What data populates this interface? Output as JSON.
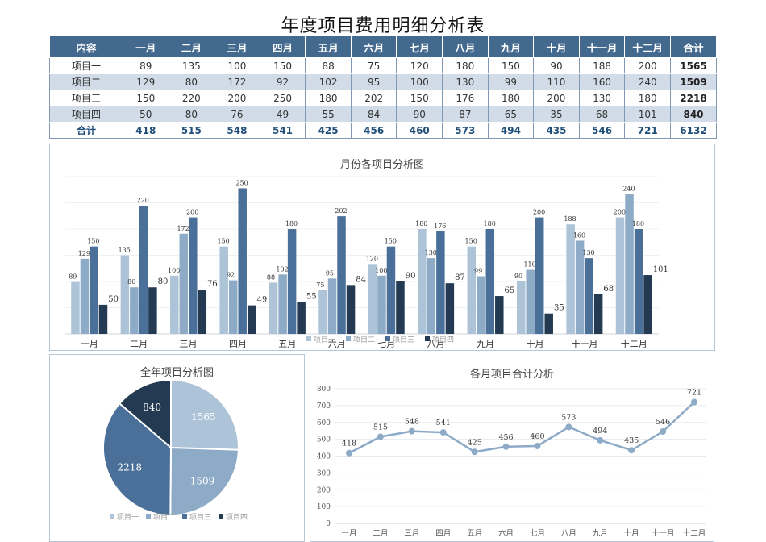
{
  "title": "年度项目费用明细分析表",
  "table": {
    "headers": [
      "内容",
      "一月",
      "二月",
      "三月",
      "四月",
      "五月",
      "六月",
      "七月",
      "八月",
      "九月",
      "十月",
      "十一月",
      "十二月",
      "合计"
    ],
    "rows": [
      {
        "name": "项目一",
        "values": [
          "89",
          "135",
          "100",
          "150",
          "88",
          "75",
          "120",
          "180",
          "150",
          "90",
          "188",
          "200"
        ],
        "total": "1565"
      },
      {
        "name": "项目二",
        "values": [
          "129",
          "80",
          "172",
          "92",
          "102",
          "95",
          "100",
          "130",
          "99",
          "110",
          "160",
          "240"
        ],
        "total": "1509"
      },
      {
        "name": "项目三",
        "values": [
          "150",
          "220",
          "200",
          "250",
          "180",
          "202",
          "150",
          "176",
          "180",
          "200",
          "130",
          "180"
        ],
        "total": "2218"
      },
      {
        "name": "项目四",
        "values": [
          "50",
          "80",
          "76",
          "49",
          "55",
          "84",
          "90",
          "87",
          "65",
          "35",
          "68",
          "101"
        ],
        "total": "840"
      }
    ],
    "sum": {
      "name": "合计",
      "values": [
        "418",
        "515",
        "548",
        "541",
        "425",
        "456",
        "460",
        "573",
        "494",
        "435",
        "546",
        "721"
      ],
      "total": "6132"
    }
  },
  "chart_data": [
    {
      "type": "bar",
      "title": "月份各项目分析图",
      "categories": [
        "一月",
        "二月",
        "三月",
        "四月",
        "五月",
        "六月",
        "七月",
        "八月",
        "九月",
        "十月",
        "十一月",
        "十二月"
      ],
      "series": [
        {
          "name": "项目一",
          "color": "#adc3d8",
          "values": [
            89,
            135,
            100,
            150,
            88,
            75,
            120,
            180,
            150,
            90,
            188,
            200
          ]
        },
        {
          "name": "项目二",
          "color": "#8daac6",
          "values": [
            129,
            80,
            172,
            92,
            102,
            95,
            100,
            130,
            99,
            110,
            160,
            240
          ]
        },
        {
          "name": "项目三",
          "color": "#4a7099",
          "values": [
            150,
            220,
            200,
            250,
            180,
            202,
            150,
            176,
            180,
            200,
            130,
            180
          ]
        },
        {
          "name": "项目四",
          "color": "#233a52",
          "values": [
            50,
            80,
            76,
            49,
            55,
            84,
            90,
            87,
            65,
            35,
            68,
            101
          ]
        }
      ],
      "ylim": [
        0,
        270
      ],
      "grid": true,
      "legend": "bottom"
    },
    {
      "type": "pie",
      "title": "全年项目分析图",
      "labels": [
        "项目一",
        "项目二",
        "项目三",
        "项目四"
      ],
      "values": [
        1565,
        1509,
        2218,
        840
      ],
      "colors": [
        "#adc3d8",
        "#8daac6",
        "#4a7099",
        "#233a52"
      ],
      "legend": "bottom"
    },
    {
      "type": "line",
      "title": "各月项目合计分析",
      "categories": [
        "一月",
        "二月",
        "三月",
        "四月",
        "五月",
        "六月",
        "七月",
        "八月",
        "九月",
        "十月",
        "十一月",
        "十二月"
      ],
      "values": [
        418,
        515,
        548,
        541,
        425,
        456,
        460,
        573,
        494,
        435,
        546,
        721
      ],
      "color": "#8daac6",
      "ylim": [
        0,
        800
      ],
      "yticks": [
        "0",
        "100",
        "200",
        "300",
        "400",
        "500",
        "600",
        "700",
        "800"
      ],
      "grid": true
    }
  ]
}
